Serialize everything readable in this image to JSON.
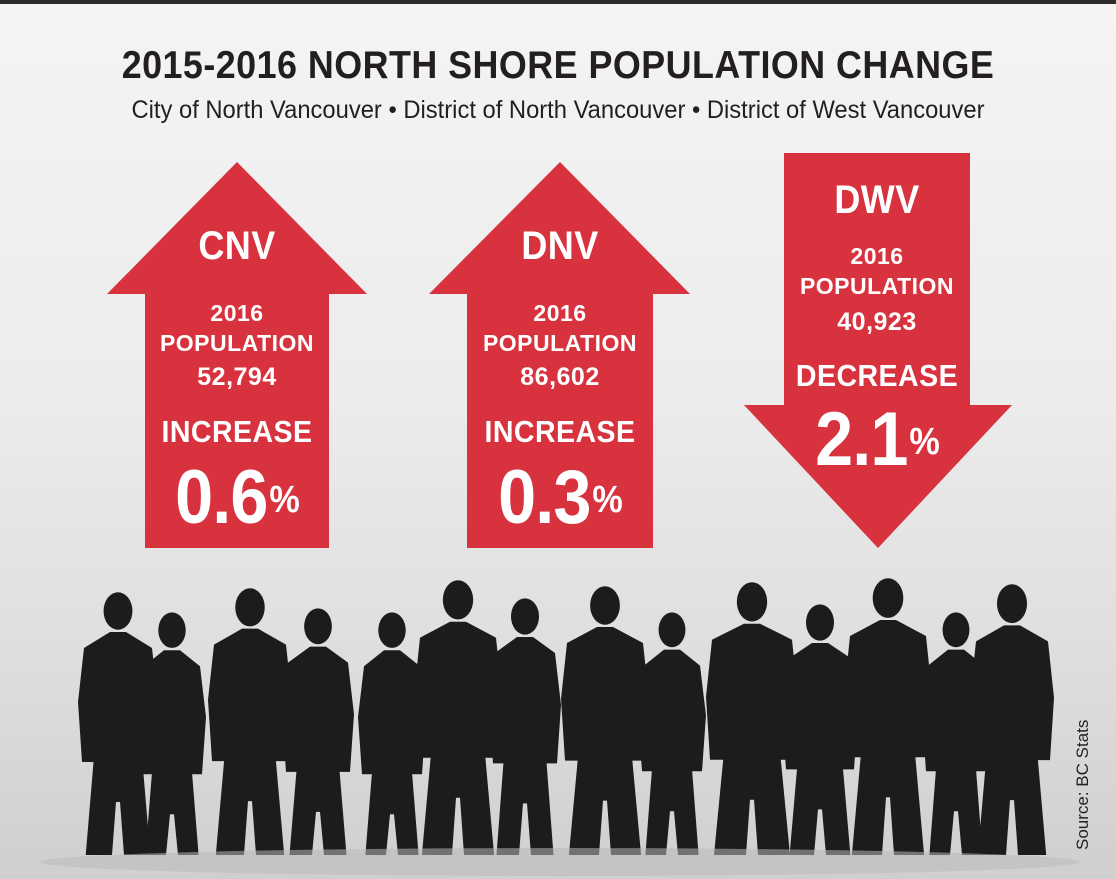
{
  "title": "2015-2016 NORTH SHORE POPULATION CHANGE",
  "subtitle": "City of North Vancouver • District of North Vancouver • District of West Vancouver",
  "colors": {
    "arrow_red": "#d9323f",
    "silhouette": "#1c1c1c",
    "text_dark": "#231f20"
  },
  "municipalities": [
    {
      "abbr": "CNV",
      "year": "2016",
      "population_label": "POPULATION",
      "population": "52,794",
      "direction": "up",
      "change_label": "INCREASE",
      "change_value": "0.6",
      "change_unit": "%"
    },
    {
      "abbr": "DNV",
      "year": "2016",
      "population_label": "POPULATION",
      "population": "86,602",
      "direction": "up",
      "change_label": "INCREASE",
      "change_value": "0.3",
      "change_unit": "%"
    },
    {
      "abbr": "DWV",
      "year": "2016",
      "population_label": "POPULATION",
      "population": "40,923",
      "direction": "down",
      "change_label": "DECREASE",
      "change_value": "2.1",
      "change_unit": "%"
    }
  ],
  "source": "Source: BC Stats"
}
